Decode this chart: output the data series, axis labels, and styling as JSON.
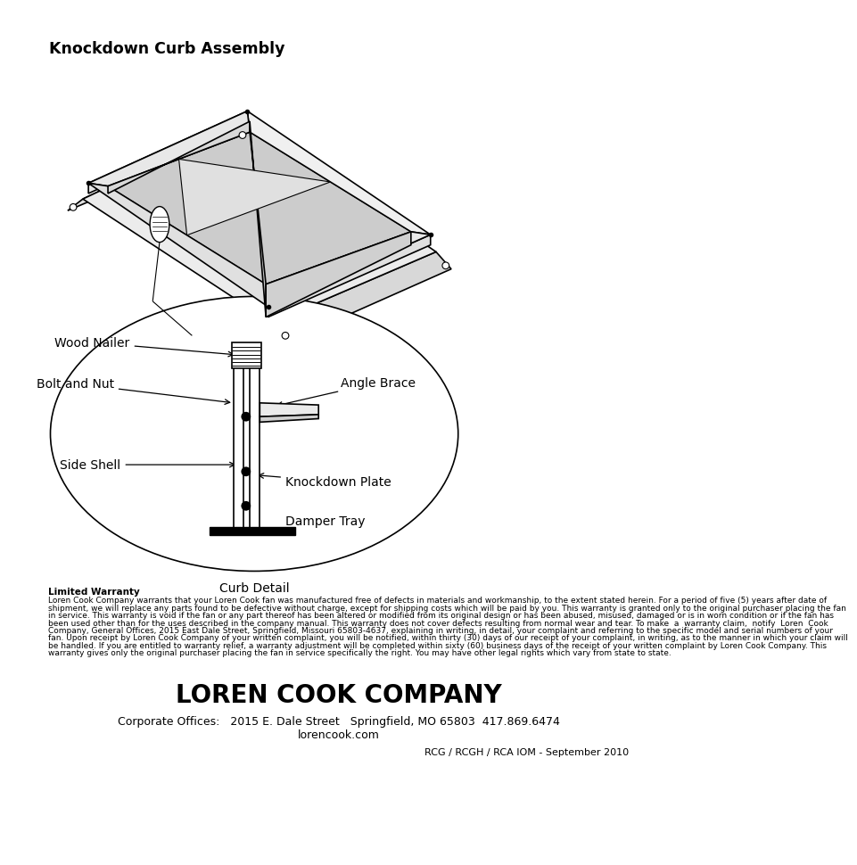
{
  "title": "Knockdown Curb Assembly",
  "background_color": "#ffffff",
  "warranty_title": "Limited Warranty",
  "warranty_body": "Loren Cook Company warrants that your Loren Cook fan was manufactured free of defects in materials and workmanship, to the extent stated herein. For a period of five (5) years after date of shipment, we will replace any parts found to be defective without charge, except for shipping costs which will be paid by you. This warranty is granted only to the original purchaser placing the fan in service. This warranty is void if the fan or any part thereof has been altered or modified from its original design or has been abused, misused, damaged or is in worn condition or if the fan has been used other than for the uses described in the company manual. This warranty does not cover defects resulting from normal wear and tear. To make  a  warranty claim,  notify  Loren  Cook Company, General Offices, 2015 East Dale Street, Springfield, Missouri 65803-4637, explaining in writing, in detail, your complaint and referring to the specific model and serial numbers of your fan. Upon receipt by Loren Cook Company of your written complaint, you will be notified, within thirty (30) days of our receipt of your complaint, in writing, as to the manner in which your claim will be handled. If you are entitled to warranty relief, a warranty adjustment will be completed within sixty (60) business days of the receipt of your written complaint by Loren Cook Company. This warranty gives only the original purchaser placing the fan in service specifically the right. You may have other legal rights which vary from state to state.",
  "company_name": "LOREN COOK COMPANY",
  "corporate_line": "Corporate Offices:   2015 E. Dale Street   Springfield, MO 65803  417.869.6474",
  "website": "lorencook.com",
  "footer_right": "RCG / RCGH / RCA IOM - September 2010"
}
